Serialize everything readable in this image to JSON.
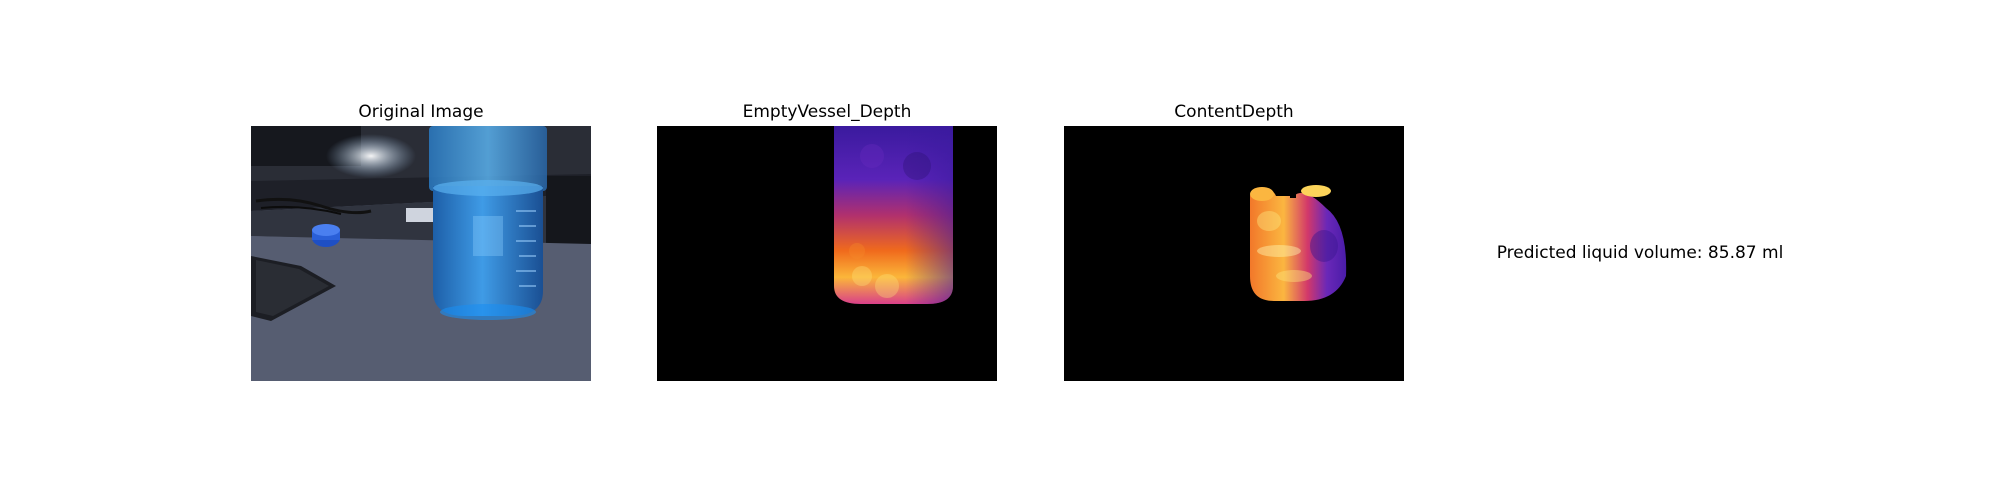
{
  "panels": [
    {
      "title": "Original Image"
    },
    {
      "title": "EmptyVessel_Depth"
    },
    {
      "title": "ContentDepth"
    }
  ],
  "prediction": {
    "text": "Predicted liquid volume: 85.87 ml"
  }
}
